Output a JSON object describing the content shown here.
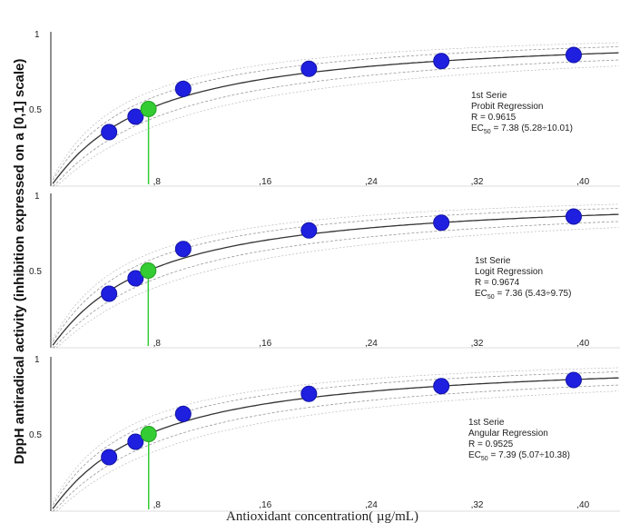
{
  "figure": {
    "ylabel": "DppH antiradical activity (inhibition expressed on a [0,1] scale)",
    "xlabel": "Antioxidant concentration( µg/mL)"
  },
  "colors": {
    "points": "#1f1fe0",
    "ec50_point": "#33cc33",
    "fit_line": "#333333",
    "ci_line": "#999999"
  },
  "chart_data": [
    {
      "type": "scatter",
      "x_ticks": [
        ",8",
        ",16",
        ",24",
        ",32",
        ",40"
      ],
      "x_tick_values": [
        8,
        16,
        24,
        32,
        40
      ],
      "y_ticks": [
        "0.5",
        "1"
      ],
      "y_tick_values": [
        0.5,
        1
      ],
      "xlim": [
        0,
        43
      ],
      "ylim": [
        0,
        1
      ],
      "points": [
        {
          "x": 4.4,
          "y": 0.35
        },
        {
          "x": 6.4,
          "y": 0.45
        },
        {
          "x": 10,
          "y": 0.63
        },
        {
          "x": 19.5,
          "y": 0.76
        },
        {
          "x": 29.5,
          "y": 0.81
        },
        {
          "x": 39.5,
          "y": 0.85
        }
      ],
      "ec50": {
        "x": 7.38,
        "y": 0.5
      },
      "annotation": [
        "1st Serie",
        "Probit Regression",
        "R = 0.9615",
        "EC",
        "50",
        "= 7.38 (5.28÷10.01)"
      ]
    },
    {
      "type": "scatter",
      "x_ticks": [
        ",8",
        ",16",
        ",24",
        ",32",
        ",40"
      ],
      "x_tick_values": [
        8,
        16,
        24,
        32,
        40
      ],
      "y_ticks": [
        "0.5",
        "1"
      ],
      "y_tick_values": [
        0.5,
        1
      ],
      "xlim": [
        0,
        43
      ],
      "ylim": [
        0,
        1
      ],
      "points": [
        {
          "x": 4.4,
          "y": 0.35
        },
        {
          "x": 6.4,
          "y": 0.45
        },
        {
          "x": 10,
          "y": 0.64
        },
        {
          "x": 19.5,
          "y": 0.76
        },
        {
          "x": 29.5,
          "y": 0.81
        },
        {
          "x": 39.5,
          "y": 0.85
        }
      ],
      "ec50": {
        "x": 7.36,
        "y": 0.5
      },
      "annotation": [
        "1st Serie",
        "Logit Regression",
        "R = 0.9674",
        "EC",
        "50",
        "= 7.36 (5.43÷9.75)"
      ]
    },
    {
      "type": "scatter",
      "x_ticks": [
        ",8",
        ",16",
        ",24",
        ",32",
        ",40"
      ],
      "x_tick_values": [
        8,
        16,
        24,
        32,
        40
      ],
      "y_ticks": [
        "0.5",
        "1"
      ],
      "y_tick_values": [
        0.5,
        1
      ],
      "xlim": [
        0,
        43
      ],
      "ylim": [
        0,
        1
      ],
      "points": [
        {
          "x": 4.4,
          "y": 0.35
        },
        {
          "x": 6.4,
          "y": 0.45
        },
        {
          "x": 10,
          "y": 0.63
        },
        {
          "x": 19.5,
          "y": 0.76
        },
        {
          "x": 29.5,
          "y": 0.81
        },
        {
          "x": 39.5,
          "y": 0.85
        }
      ],
      "ec50": {
        "x": 7.39,
        "y": 0.5
      },
      "annotation": [
        "1st Serie",
        "Angular Regression",
        "R = 0.9525",
        "EC",
        "50",
        "= 7.39 (5.07÷10.38)"
      ]
    }
  ]
}
